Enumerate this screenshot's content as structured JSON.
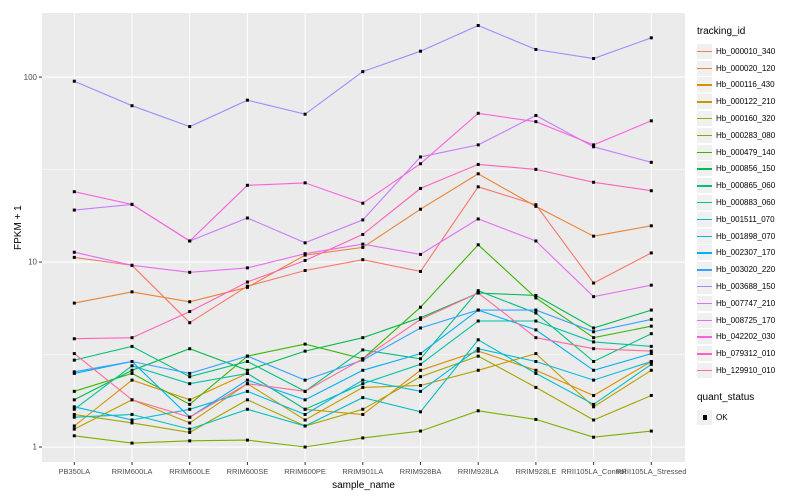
{
  "chart_data": {
    "type": "line",
    "title": "",
    "xlabel": "sample_name",
    "ylabel": "FPKM + 1",
    "y_scale": "log10",
    "y_ticks": [
      1,
      10,
      100
    ],
    "y_minor_gridlines": [
      3.162,
      31.62
    ],
    "ylim": [
      0.83,
      222
    ],
    "grid": true,
    "panel_bg": "#EBEBEB",
    "grid_color": "#FFFFFF",
    "marker_color": "#000000",
    "marker_shape": "square",
    "tick_label_color": "#4D4D4D",
    "categories": [
      "PB350LA",
      "RRIM600LA",
      "RRIM600LE",
      "RRIM600SE",
      "RRIM600PE",
      "RRIM901LA",
      "RRIM928BA",
      "RRIM928LA",
      "RRIM928LE",
      "RRII105LA_Control",
      "RRII105LA_Stressed"
    ],
    "series": [
      {
        "name": "Hb_000010_340",
        "color": "#F8766D",
        "values": [
          10.6,
          9.6,
          4.7,
          7.4,
          9.0,
          10.3,
          8.9,
          25.5,
          20.4,
          7.7,
          11.2
        ]
      },
      {
        "name": "Hb_000020_120",
        "color": "#EA8331",
        "values": [
          6.0,
          6.9,
          6.1,
          7.3,
          10.9,
          12.0,
          19.3,
          30.0,
          20.0,
          13.8,
          15.7
        ]
      },
      {
        "name": "Hb_000116_430",
        "color": "#D89000",
        "values": [
          1.3,
          2.3,
          1.8,
          2.5,
          1.6,
          1.5,
          2.6,
          3.3,
          2.6,
          1.9,
          2.9
        ]
      },
      {
        "name": "Hb_000122_210",
        "color": "#C09B00",
        "values": [
          1.25,
          1.8,
          1.35,
          2.2,
          1.4,
          2.1,
          2.15,
          2.6,
          3.2,
          1.65,
          2.6
        ]
      },
      {
        "name": "Hb_000160_320",
        "color": "#A3A500",
        "values": [
          1.5,
          1.35,
          1.2,
          1.8,
          1.3,
          1.6,
          2.4,
          3.1,
          2.1,
          1.4,
          1.9
        ]
      },
      {
        "name": "Hb_000283_080",
        "color": "#7CAE00",
        "values": [
          1.15,
          1.05,
          1.08,
          1.09,
          1.0,
          1.12,
          1.22,
          1.57,
          1.41,
          1.13,
          1.22
        ]
      },
      {
        "name": "Hb_000479_140",
        "color": "#39B600",
        "values": [
          2.0,
          2.5,
          1.7,
          3.1,
          3.6,
          3.0,
          5.7,
          12.4,
          6.4,
          3.9,
          4.5
        ]
      },
      {
        "name": "Hb_000856_150",
        "color": "#00BB4E",
        "values": [
          1.8,
          2.6,
          3.4,
          2.6,
          3.3,
          3.9,
          5.0,
          6.8,
          6.6,
          4.4,
          5.5
        ]
      },
      {
        "name": "Hb_000865_060",
        "color": "#00BF7D",
        "values": [
          2.95,
          3.5,
          2.4,
          2.9,
          2.0,
          3.35,
          3.0,
          7.0,
          5.3,
          2.9,
          4.1
        ]
      },
      {
        "name": "Hb_000883_060",
        "color": "#00C1A3",
        "values": [
          1.6,
          2.75,
          2.2,
          2.5,
          1.6,
          2.2,
          2.8,
          4.8,
          4.8,
          3.7,
          3.5
        ]
      },
      {
        "name": "Hb_001511_070",
        "color": "#00BFC4",
        "values": [
          1.45,
          1.5,
          1.25,
          1.6,
          1.3,
          1.85,
          1.55,
          3.8,
          2.5,
          1.7,
          2.8
        ]
      },
      {
        "name": "Hb_001898_070",
        "color": "#00BAE0",
        "values": [
          1.65,
          1.4,
          1.6,
          2.0,
          1.5,
          2.3,
          2.0,
          3.4,
          2.9,
          2.3,
          2.9
        ]
      },
      {
        "name": "Hb_002307_170",
        "color": "#00B0F6",
        "values": [
          2.5,
          2.9,
          1.45,
          2.3,
          1.8,
          2.6,
          3.2,
          5.5,
          4.3,
          2.6,
          3.2
        ]
      },
      {
        "name": "Hb_003020_220",
        "color": "#35A2FF",
        "values": [
          2.55,
          2.9,
          2.5,
          3.1,
          2.3,
          2.95,
          4.4,
          5.5,
          5.5,
          4.2,
          4.9
        ]
      },
      {
        "name": "Hb_003688_150",
        "color": "#9590FF",
        "values": [
          95,
          70,
          54,
          75,
          63,
          107,
          138,
          190,
          141,
          126,
          163
        ]
      },
      {
        "name": "Hb_007747_210",
        "color": "#C77CFF",
        "values": [
          19.1,
          20.5,
          13.0,
          17.3,
          12.7,
          16.9,
          37.0,
          43.0,
          62.0,
          42.0,
          34.6
        ]
      },
      {
        "name": "Hb_008725_170",
        "color": "#E76BF3",
        "values": [
          11.3,
          9.6,
          8.8,
          9.3,
          11.1,
          12.5,
          11.0,
          17.1,
          13.0,
          6.5,
          7.5
        ]
      },
      {
        "name": "Hb_042202_030",
        "color": "#FA62DB",
        "values": [
          24.0,
          20.5,
          13.0,
          26.0,
          26.8,
          20.8,
          34.0,
          63.7,
          57.4,
          43.0,
          58.0
        ]
      },
      {
        "name": "Hb_079312_010",
        "color": "#FF62BC",
        "values": [
          3.85,
          3.9,
          5.4,
          7.8,
          10.2,
          14.1,
          25.0,
          33.7,
          31.7,
          27.0,
          24.3
        ]
      },
      {
        "name": "Hb_129910_010",
        "color": "#FF6A98",
        "values": [
          3.2,
          1.8,
          1.45,
          2.2,
          2.0,
          3.0,
          4.9,
          6.8,
          3.9,
          3.4,
          3.3
        ]
      }
    ],
    "legend": {
      "position": "right",
      "tracking_title": "tracking_id",
      "quant_title": "quant_status",
      "quant_entries": [
        {
          "label": "OK",
          "marker": "black-square"
        }
      ]
    }
  }
}
